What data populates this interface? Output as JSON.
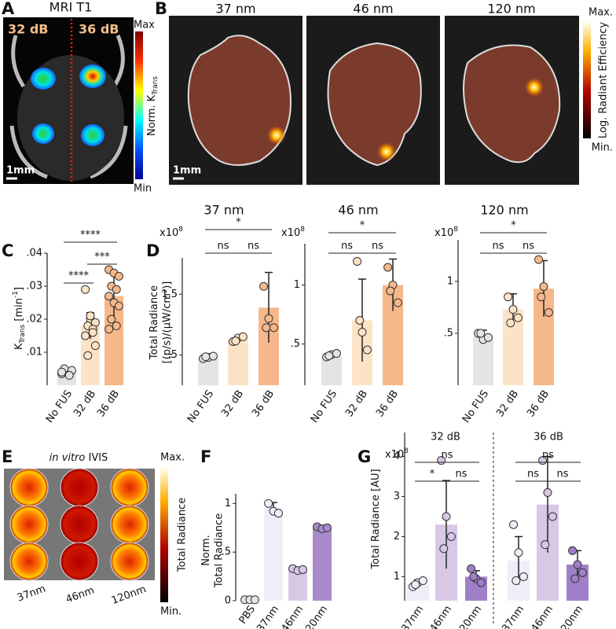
{
  "panels": {
    "A": {
      "letter": "A",
      "title": "MRI T1",
      "left": "32 dB",
      "right": "36 dB",
      "scale": "1mm",
      "cbar_max": "Max",
      "cbar_min": "Min",
      "cbar_label": "Norm. K",
      "cbar_sub": "Trans"
    },
    "B": {
      "letter": "B",
      "titles": [
        "37 nm",
        "46 nm",
        "120 nm"
      ],
      "scale": "1mm",
      "cbar_max": "Max.",
      "cbar_min": "Min.",
      "cbar_label": "Log. Radiant Efficiency"
    },
    "E": {
      "letter": "E",
      "title_italic": "in vitro",
      "title": " IVIS",
      "labels": [
        "37nm",
        "46nm",
        "120nm"
      ],
      "cbar_max": "Max.",
      "cbar_min": "Min.",
      "cbar_label": "Total Radiance"
    }
  },
  "chart_data": [
    {
      "type": "bar",
      "panel": "C",
      "categories": [
        "No FUS",
        "32 dB",
        "36 dB"
      ],
      "values": [
        0.004,
        0.018,
        0.027
      ],
      "errors": [
        0.001,
        0.004,
        0.007
      ],
      "points": [
        [
          0.0035,
          0.004,
          0.0045,
          0.005,
          0.003,
          0.004
        ],
        [
          0.029,
          0.02,
          0.019,
          0.018,
          0.017,
          0.015,
          0.021,
          0.012,
          0.009,
          0.016
        ],
        [
          0.035,
          0.034,
          0.033,
          0.03,
          0.029,
          0.027,
          0.025,
          0.024,
          0.02,
          0.018,
          0.017
        ]
      ],
      "colors": [
        "#e4e4e4",
        "#fde3c6",
        "#f6b88a"
      ],
      "ylim": [
        0,
        0.04
      ],
      "yticks": [
        {
          "value": 0.01,
          "label": ".01"
        },
        {
          "value": 0.02,
          "label": ".02"
        },
        {
          "value": 0.03,
          "label": ".03"
        },
        {
          "value": 0.04,
          "label": ".04"
        }
      ],
      "ylabel": "K",
      "ylabel_sub": "Trans",
      "ylabel_rest": " [min",
      "ylabel_sup": "-1",
      "ylabel_end": "]",
      "brackets": [
        "****",
        "***",
        "****"
      ]
    },
    {
      "type": "bar",
      "panel": "D",
      "title": "37 nm",
      "multiplier": "x10",
      "multiplier_exp": "8",
      "ylabel": "Total Radiance",
      "ylabel2": "[(p/s)/(μW/cm²)]",
      "categories": [
        "No FUS",
        "32 dB",
        "36 dB"
      ],
      "values": [
        0.46,
        0.76,
        1.28
      ],
      "errors": [
        0.03,
        0.05,
        0.58
      ],
      "points": [
        [
          0.44,
          0.46,
          0.48,
          0.47
        ],
        [
          0.72,
          0.78,
          0.8,
          0.73
        ],
        [
          1.63,
          1.1,
          0.95,
          0.95
        ]
      ],
      "colors": [
        "#e4e4e4",
        "#fde3c6",
        "#f6b88a"
      ],
      "ylim": [
        0,
        2.1
      ],
      "yticks": [
        {
          "value": 0.5,
          "label": ".5"
        },
        1.5
      ],
      "brackets": [
        "ns",
        "ns",
        "*"
      ]
    },
    {
      "type": "bar",
      "title": "46 nm",
      "multiplier": "x10",
      "multiplier_exp": "8",
      "categories": [
        "No FUS",
        "32 dB",
        "36 dB"
      ],
      "values": [
        0.4,
        0.7,
        1.0
      ],
      "errors": [
        0.02,
        0.35,
        0.22
      ],
      "points": [
        [
          0.39,
          0.41,
          0.42,
          0.4
        ],
        [
          1.2,
          0.6,
          0.45,
          0.7
        ],
        [
          1.15,
          1.0,
          0.85,
          0.95
        ]
      ],
      "colors": [
        "#e4e4e4",
        "#fde3c6",
        "#f6b88a"
      ],
      "ylim": [
        0.15,
        1.35
      ],
      "yticks": [
        {
          "value": 0.5,
          "label": ".5"
        },
        1
      ],
      "brackets": [
        "ns",
        "ns",
        "*"
      ]
    },
    {
      "type": "bar",
      "title": "120 nm",
      "multiplier": "x10",
      "multiplier_exp": "8",
      "categories": [
        "No FUS",
        "32 dB",
        "36 dB"
      ],
      "values": [
        0.47,
        0.73,
        0.93
      ],
      "errors": [
        0.06,
        0.15,
        0.27
      ],
      "points": [
        [
          0.5,
          0.44,
          0.46,
          0.5
        ],
        [
          0.85,
          0.73,
          0.65,
          0.6
        ],
        [
          1.21,
          0.95,
          0.7,
          0.85
        ]
      ],
      "colors": [
        "#e4e4e4",
        "#fde3c6",
        "#f6b88a"
      ],
      "ylim": [
        0,
        1.4
      ],
      "yticks": [
        {
          "value": 0.5,
          "label": ".5"
        },
        1
      ],
      "brackets": [
        "ns",
        "ns",
        "*"
      ]
    },
    {
      "type": "bar",
      "panel": "F",
      "ylabel": "Norm.",
      "ylabel2": "Total Radiance",
      "categories": [
        "PBS",
        "37nm",
        "46nm",
        "120nm"
      ],
      "values": [
        0.01,
        0.95,
        0.32,
        0.75
      ],
      "errors": [
        0.01,
        0.06,
        0.02,
        0.02
      ],
      "points": [
        [
          0.01,
          0.01,
          0.01
        ],
        [
          1.0,
          0.92,
          0.9
        ],
        [
          0.33,
          0.31,
          0.32
        ],
        [
          0.76,
          0.74,
          0.75
        ]
      ],
      "colors": [
        "#e4e4e4",
        "#f1edf8",
        "#d8c8e6",
        "#a98bcb"
      ],
      "ylim": [
        0,
        1.1
      ],
      "yticks": [
        0,
        {
          "value": 0.5,
          "label": ".5"
        },
        1
      ],
      "brackets": []
    },
    {
      "type": "grouped_bar",
      "panel": "G",
      "multiplier": "x10",
      "multiplier_exp": "8",
      "ylabel": "Total Radiance [AU]",
      "ylim": [
        0.4,
        4.6
      ],
      "yticks": [
        1,
        2,
        3,
        4
      ],
      "groups": [
        {
          "name": "32 dB",
          "categories": [
            "37nm",
            "46nm",
            "120nm"
          ],
          "values": [
            0.82,
            2.3,
            1.0
          ],
          "errors": [
            0.1,
            1.1,
            0.15
          ],
          "points": [
            [
              0.75,
              0.85,
              0.9,
              0.8
            ],
            [
              3.9,
              2.5,
              2.0,
              1.7
            ],
            [
              1.2,
              0.95,
              0.85,
              1.0
            ]
          ],
          "colors": [
            "#f1edf8",
            "#d8c8e6",
            "#9f7fc7"
          ],
          "brackets": [
            "*",
            "ns",
            "ns"
          ]
        },
        {
          "name": "36 dB",
          "categories": [
            "37nm",
            "46nm",
            "120nm"
          ],
          "values": [
            1.4,
            2.8,
            1.3
          ],
          "errors": [
            0.6,
            1.2,
            0.35
          ],
          "points": [
            [
              2.3,
              1.6,
              1.0,
              0.9
            ],
            [
              3.9,
              3.1,
              2.5,
              1.8
            ],
            [
              1.65,
              1.3,
              1.1,
              0.95
            ]
          ],
          "colors": [
            "#f1edf8",
            "#d8c8e6",
            "#9f7fc7"
          ],
          "brackets": [
            "ns",
            "ns",
            "ns"
          ]
        }
      ]
    }
  ]
}
